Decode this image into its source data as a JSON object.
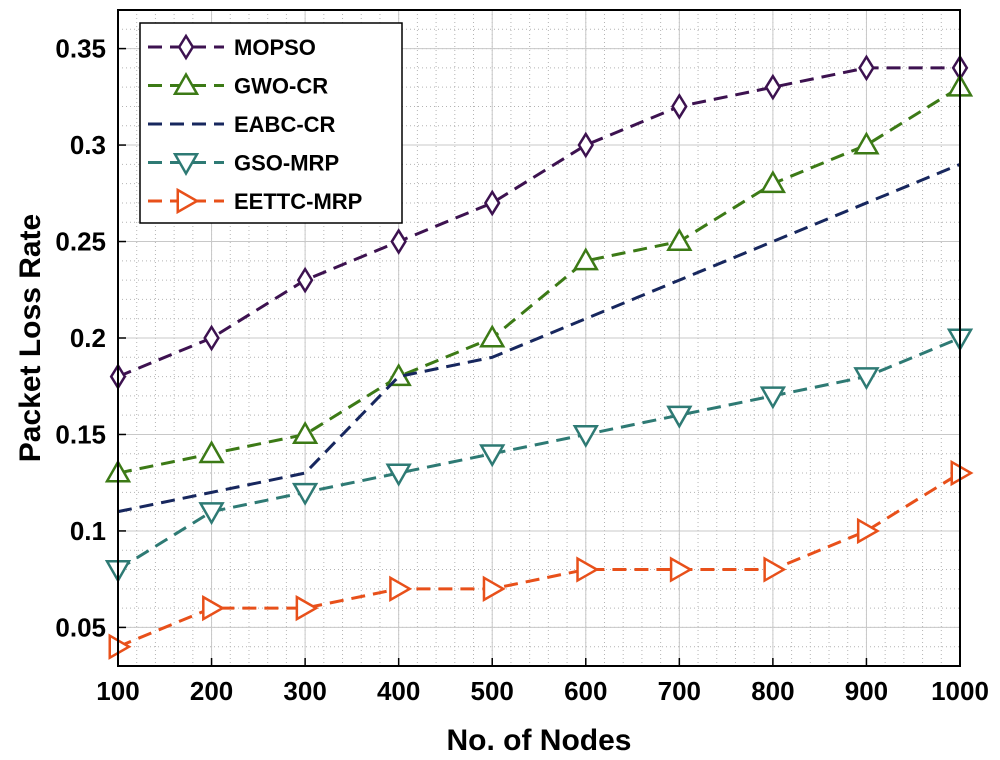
{
  "chart_data": {
    "type": "line",
    "title": "",
    "xlabel": "No. of Nodes",
    "ylabel": "Packet Loss Rate",
    "x": [
      100,
      200,
      300,
      400,
      500,
      600,
      700,
      800,
      900,
      1000
    ],
    "xlim": [
      100,
      1000
    ],
    "ylim": [
      0.03,
      0.37
    ],
    "x_ticks": [
      100,
      200,
      300,
      400,
      500,
      600,
      700,
      800,
      900,
      1000
    ],
    "x_tick_labels": [
      "100",
      "200",
      "300",
      "400",
      "500",
      "600",
      "700",
      "800",
      "900",
      "1000"
    ],
    "y_ticks": [
      0.05,
      0.1,
      0.15,
      0.2,
      0.25,
      0.3,
      0.35
    ],
    "y_tick_labels": [
      "0.05",
      "0.1",
      "0.15",
      "0.2",
      "0.25",
      "0.3",
      "0.35"
    ],
    "grid": true,
    "minor_grid": true,
    "legend_position": "top-left",
    "series": [
      {
        "name": "MOPSO",
        "color": "#3d1250",
        "marker": "diamond",
        "values": [
          0.18,
          0.2,
          0.23,
          0.25,
          0.27,
          0.3,
          0.32,
          0.33,
          0.34,
          0.34
        ]
      },
      {
        "name": "GWO-CR",
        "color": "#3c7a16",
        "marker": "triangle-up",
        "values": [
          0.13,
          0.14,
          0.15,
          0.18,
          0.2,
          0.24,
          0.25,
          0.28,
          0.3,
          0.33
        ]
      },
      {
        "name": "EABC-CR",
        "color": "#17275e",
        "marker": "none",
        "values": [
          0.11,
          0.12,
          0.13,
          0.18,
          0.19,
          0.21,
          0.23,
          0.25,
          0.27,
          0.29
        ]
      },
      {
        "name": "GSO-MRP",
        "color": "#2e7a74",
        "marker": "triangle-down",
        "values": [
          0.08,
          0.11,
          0.12,
          0.13,
          0.14,
          0.15,
          0.16,
          0.17,
          0.18,
          0.2
        ]
      },
      {
        "name": "EETTC-MRP",
        "color": "#e8501a",
        "marker": "triangle-right",
        "values": [
          0.04,
          0.06,
          0.06,
          0.07,
          0.07,
          0.08,
          0.08,
          0.08,
          0.1,
          0.13
        ]
      }
    ]
  }
}
